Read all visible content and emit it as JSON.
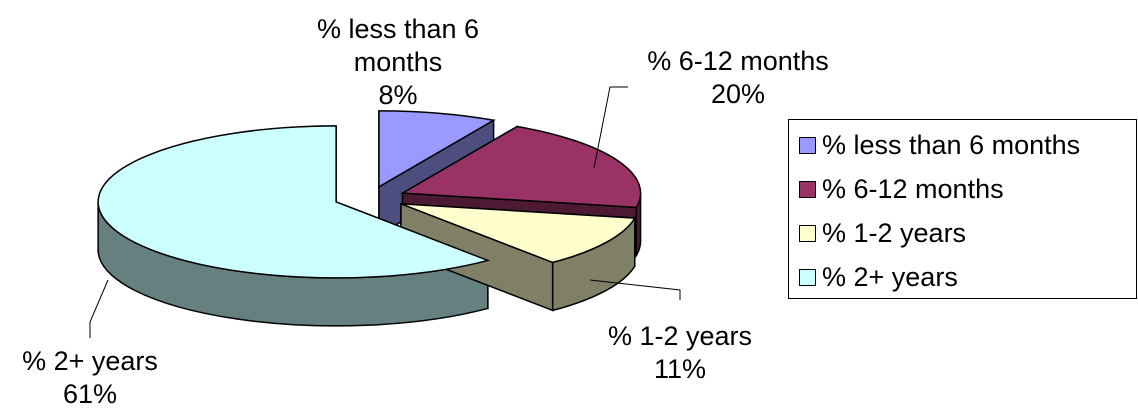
{
  "chart_data": {
    "type": "pie",
    "style": "3d-exploded",
    "categories": [
      "% less than 6 months",
      "% 6-12 months",
      "% 1-2 years",
      "% 2+ years"
    ],
    "values": [
      8,
      20,
      11,
      61
    ],
    "data_labels": [
      [
        "% less than 6",
        "months",
        "8%"
      ],
      [
        "% 6-12 months",
        "20%"
      ],
      [
        "% 1-2 years",
        "11%"
      ],
      [
        "% 2+ years",
        "61%"
      ]
    ],
    "colors": [
      "#9999ff",
      "#993366",
      "#ffffcc",
      "#ccffff"
    ],
    "side_colors": [
      "#4d4d80",
      "#4d1a33",
      "#808066",
      "#668080"
    ],
    "legend_position": "right"
  }
}
